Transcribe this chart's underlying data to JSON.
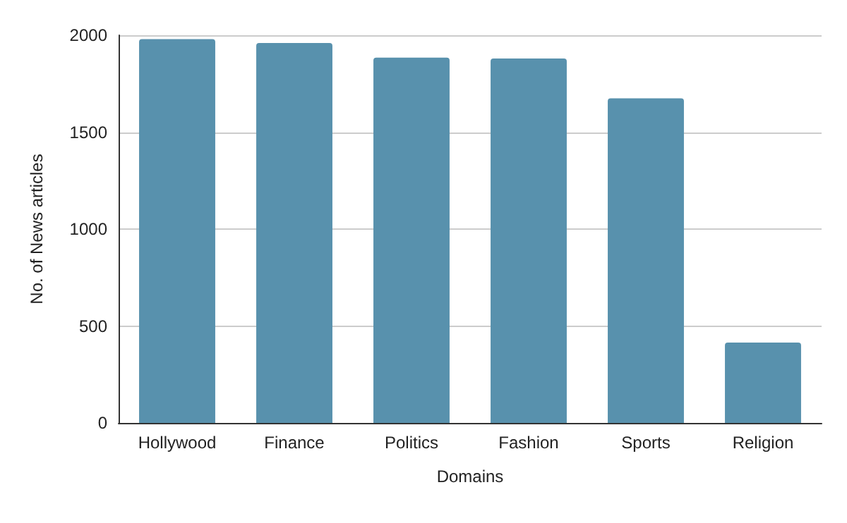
{
  "chart_data": {
    "type": "bar",
    "xlabel": "Domains",
    "ylabel": "No. of News articles",
    "categories": [
      "Hollywood",
      "Finance",
      "Politics",
      "Fashion",
      "Sports",
      "Religion"
    ],
    "values": [
      1980,
      1960,
      1885,
      1880,
      1675,
      415
    ],
    "color": "#5891ad",
    "ylim": [
      0,
      2000
    ],
    "yticks": [
      0,
      500,
      1000,
      1500,
      2000
    ],
    "grid": "y"
  }
}
